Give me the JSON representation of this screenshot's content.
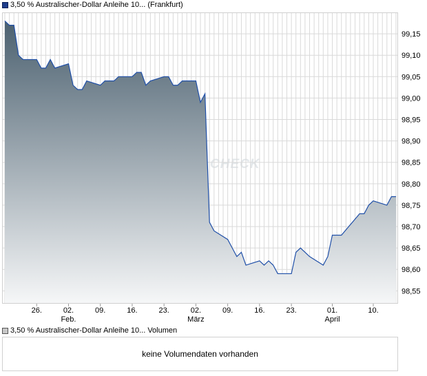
{
  "price_legend": "3,50 % Australischer-Dollar Anleihe 10... (Frankfurt)",
  "volume_legend": "3,50 % Australischer-Dollar Anleihe 10... Volumen",
  "volume_message": "keine Volumendaten vorhanden",
  "watermark": "CHECK",
  "colors": {
    "line": "#1f4fa8",
    "fill_top": "#4c6170",
    "fill_bottom": "#f6f7f8",
    "grid": "#d9d9d9"
  },
  "chart_data": {
    "type": "area",
    "title": "",
    "xlabel": "",
    "ylabel": "",
    "ylim": [
      98.52,
      99.2
    ],
    "y_ticks": [
      "99,15",
      "99,10",
      "99,05",
      "99,00",
      "98,95",
      "98,90",
      "98,85",
      "98,80",
      "98,75",
      "98,70",
      "98,65",
      "98,60",
      "98,55"
    ],
    "x_ticks": [
      {
        "label": "26.",
        "date": "2015-01-26"
      },
      {
        "label": "02.",
        "sub": "Feb.",
        "date": "2015-02-02"
      },
      {
        "label": "09.",
        "date": "2015-02-09"
      },
      {
        "label": "16.",
        "date": "2015-02-16"
      },
      {
        "label": "23.",
        "date": "2015-02-23"
      },
      {
        "label": "02.",
        "sub": "März",
        "date": "2015-03-02"
      },
      {
        "label": "09.",
        "date": "2015-03-09"
      },
      {
        "label": "16.",
        "date": "2015-03-16"
      },
      {
        "label": "23.",
        "date": "2015-03-23"
      },
      {
        "label": "01.",
        "sub": "April",
        "date": "2015-04-01"
      },
      {
        "label": "10.",
        "date": "2015-04-10"
      }
    ],
    "series": [
      {
        "values": [
          [
            "2015-01-19",
            99.18
          ],
          [
            "2015-01-20",
            99.17
          ],
          [
            "2015-01-21",
            99.17
          ],
          [
            "2015-01-22",
            99.1
          ],
          [
            "2015-01-23",
            99.09
          ],
          [
            "2015-01-26",
            99.09
          ],
          [
            "2015-01-27",
            99.07
          ],
          [
            "2015-01-28",
            99.07
          ],
          [
            "2015-01-29",
            99.09
          ],
          [
            "2015-01-30",
            99.07
          ],
          [
            "2015-02-02",
            99.08
          ],
          [
            "2015-02-03",
            99.03
          ],
          [
            "2015-02-04",
            99.02
          ],
          [
            "2015-02-05",
            99.02
          ],
          [
            "2015-02-06",
            99.04
          ],
          [
            "2015-02-09",
            99.03
          ],
          [
            "2015-02-10",
            99.04
          ],
          [
            "2015-02-11",
            99.04
          ],
          [
            "2015-02-12",
            99.04
          ],
          [
            "2015-02-13",
            99.05
          ],
          [
            "2015-02-16",
            99.05
          ],
          [
            "2015-02-17",
            99.06
          ],
          [
            "2015-02-18",
            99.06
          ],
          [
            "2015-02-19",
            99.03
          ],
          [
            "2015-02-20",
            99.04
          ],
          [
            "2015-02-23",
            99.05
          ],
          [
            "2015-02-24",
            99.05
          ],
          [
            "2015-02-25",
            99.03
          ],
          [
            "2015-02-26",
            99.03
          ],
          [
            "2015-02-27",
            99.04
          ],
          [
            "2015-03-02",
            99.04
          ],
          [
            "2015-03-03",
            98.99
          ],
          [
            "2015-03-04",
            99.01
          ],
          [
            "2015-03-05",
            98.71
          ],
          [
            "2015-03-06",
            98.69
          ],
          [
            "2015-03-09",
            98.67
          ],
          [
            "2015-03-10",
            98.65
          ],
          [
            "2015-03-11",
            98.63
          ],
          [
            "2015-03-12",
            98.64
          ],
          [
            "2015-03-13",
            98.61
          ],
          [
            "2015-03-16",
            98.62
          ],
          [
            "2015-03-17",
            98.61
          ],
          [
            "2015-03-18",
            98.62
          ],
          [
            "2015-03-19",
            98.61
          ],
          [
            "2015-03-20",
            98.59
          ],
          [
            "2015-03-23",
            98.59
          ],
          [
            "2015-03-24",
            98.64
          ],
          [
            "2015-03-25",
            98.65
          ],
          [
            "2015-03-26",
            98.64
          ],
          [
            "2015-03-27",
            98.63
          ],
          [
            "2015-03-30",
            98.61
          ],
          [
            "2015-03-31",
            98.63
          ],
          [
            "2015-04-01",
            98.68
          ],
          [
            "2015-04-02",
            98.68
          ],
          [
            "2015-04-03",
            98.68
          ],
          [
            "2015-04-07",
            98.73
          ],
          [
            "2015-04-08",
            98.73
          ],
          [
            "2015-04-09",
            98.75
          ],
          [
            "2015-04-10",
            98.76
          ],
          [
            "2015-04-13",
            98.75
          ],
          [
            "2015-04-14",
            98.77
          ],
          [
            "2015-04-15",
            98.77
          ]
        ]
      }
    ],
    "grid": true
  }
}
